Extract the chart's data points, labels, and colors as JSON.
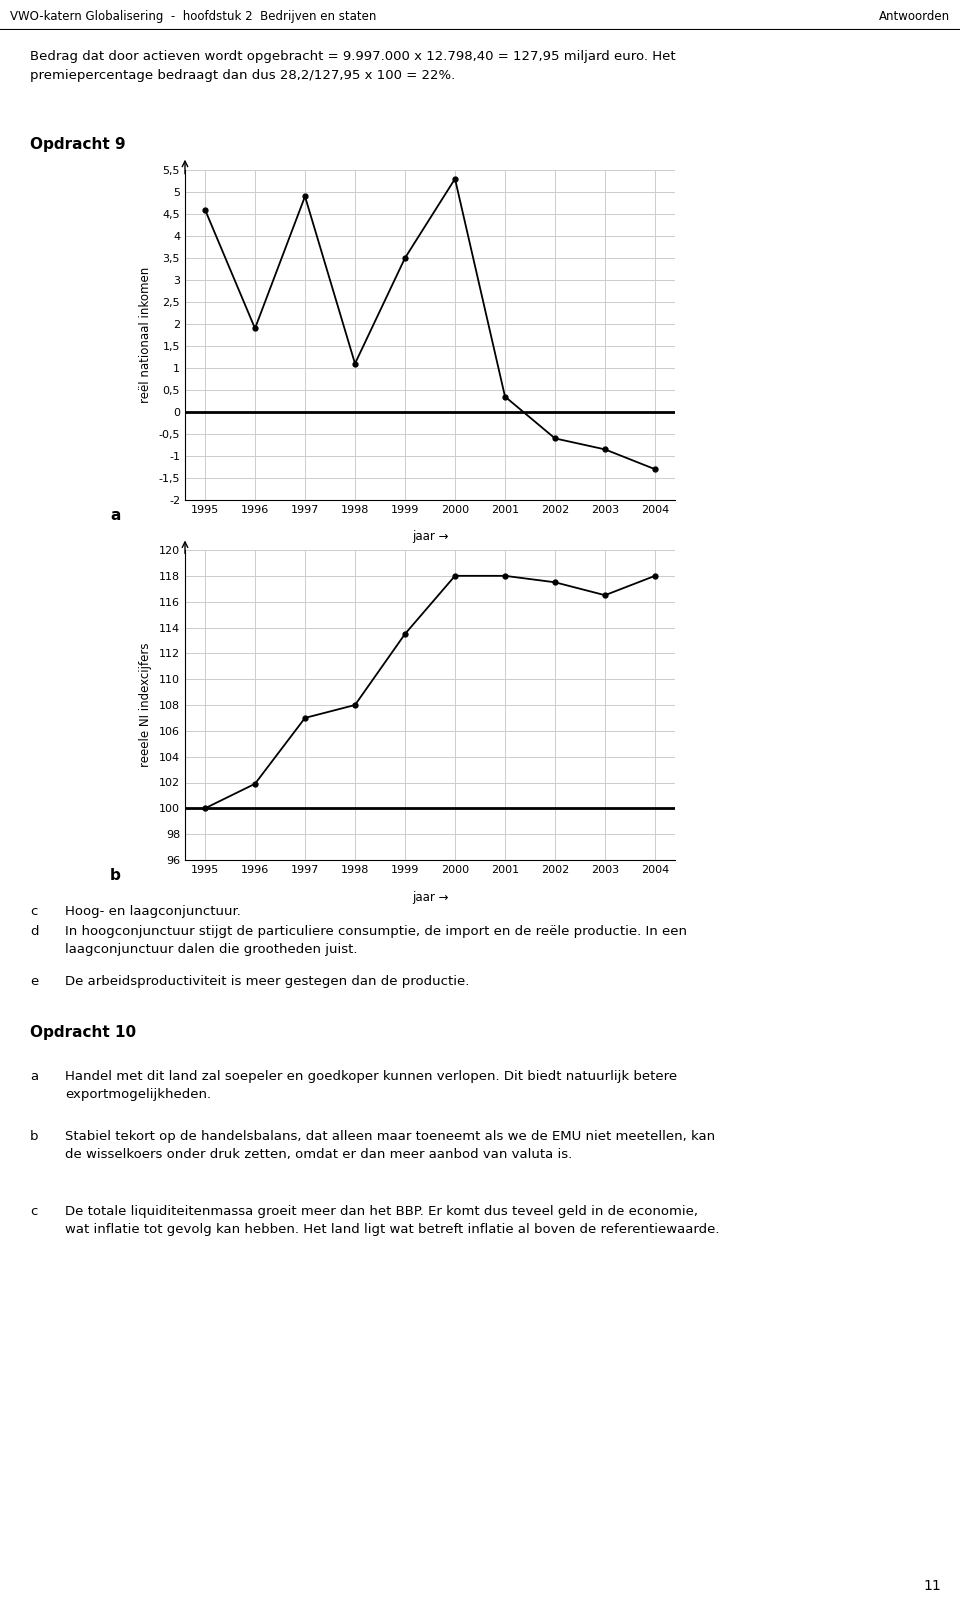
{
  "header_left": "VWO-katern Globalisering  -  hoofdstuk 2  Bedrijven en staten",
  "header_right": "Antwoorden",
  "page_number": "11",
  "intro_text": "Bedrag dat door actieven wordt opgebracht = 9.997.000 x 12.798,40 = 127,95 miljard euro. Het\npremiepercentage bedraagt dan dus 28,2/127,95 x 100 = 22%.",
  "opdracht9_title": "Opdracht 9",
  "chart_a_label": "a",
  "chart_b_label": "b",
  "chart_a_ylabel": "reël nationaal inkomen",
  "chart_b_ylabel": "reeele NI indexcijfers",
  "years": [
    1995,
    1996,
    1997,
    1998,
    1999,
    2000,
    2001,
    2002,
    2003,
    2004
  ],
  "chart_a_values": [
    4.6,
    1.9,
    4.9,
    1.1,
    3.5,
    5.3,
    0.35,
    -0.6,
    -0.85,
    -1.3
  ],
  "chart_a_ylim": [
    -2.0,
    5.5
  ],
  "chart_a_yticks": [
    -2,
    -1.5,
    -1,
    -0.5,
    0,
    0.5,
    1,
    1.5,
    2,
    2.5,
    3,
    3.5,
    4,
    4.5,
    5,
    5.5
  ],
  "chart_a_ytick_labels": [
    "-2",
    "-1,5",
    "-1",
    "-0,5",
    "0",
    "0,5",
    "1",
    "1,5",
    "2",
    "2,5",
    "3",
    "3,5",
    "4",
    "4,5",
    "5",
    "5,5"
  ],
  "chart_b_values": [
    100,
    101.9,
    107.0,
    108.0,
    113.5,
    118.0,
    118.0,
    117.5,
    116.5,
    118.0
  ],
  "chart_b_ylim": [
    96,
    120
  ],
  "chart_b_yticks": [
    96,
    98,
    100,
    102,
    104,
    106,
    108,
    110,
    112,
    114,
    116,
    118,
    120
  ],
  "chart_b_ytick_labels": [
    "96",
    "98",
    "100",
    "102",
    "104",
    "106",
    "108",
    "110",
    "112",
    "114",
    "116",
    "118",
    "120"
  ],
  "text_c_label": "c",
  "text_c": "Hoog- en laagconjunctuur.",
  "text_d_label": "d",
  "text_d": "In hoogconjunctuur stijgt de particuliere consumptie, de import en de reële productie. In een\nlaagconjunctuur dalen die grootheden juist.",
  "text_e_label": "e",
  "text_e": "De arbeidsproductiviteit is meer gestegen dan de productie.",
  "opdracht10_title": "Opdracht 10",
  "text_10a_label": "a",
  "text_10a": "Handel met dit land zal soepeler en goedkoper kunnen verlopen. Dit biedt natuurlijk betere\nexportmogelijkheden.",
  "text_10b_label": "b",
  "text_10b": "Stabiel tekort op de handelsbalans, dat alleen maar toeneemt als we de EMU niet meetellen, kan\nde wisselkoers onder druk zetten, omdat er dan meer aanbod van valuta is.",
  "text_10c_label": "c",
  "text_10c": "De totale liquiditeitenmassa groeit meer dan het BBP. Er komt dus teveel geld in de economie,\nwat inflatie tot gevolg kan hebben. Het land ligt wat betreft inflatie al boven de referentiewaarde.",
  "line_color": "#000000",
  "grid_color": "#cccccc",
  "bg_color": "#ffffff"
}
